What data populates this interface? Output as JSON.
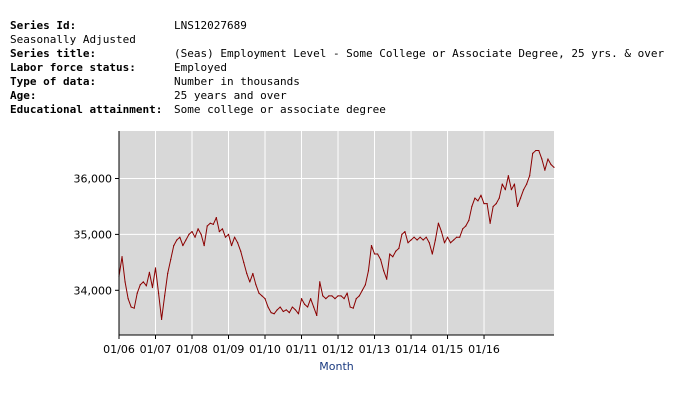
{
  "metadata": {
    "rows": [
      {
        "key": "Series Id:",
        "value": "LNS12027689",
        "bold": true
      },
      {
        "key": "Seasonally Adjusted",
        "value": "",
        "bold": false
      },
      {
        "key": "Series title:",
        "value": "(Seas) Employment Level - Some College or Associate Degree, 25 yrs. & over",
        "bold": true
      },
      {
        "key": "Labor force status:",
        "value": "Employed",
        "bold": true
      },
      {
        "key": "Type of data:",
        "value": "Number in thousands",
        "bold": true
      },
      {
        "key": "Age:",
        "value": "25 years and over",
        "bold": true
      },
      {
        "key": "Educational attainment:",
        "value": "Some college or associate degree",
        "bold": true
      }
    ]
  },
  "chart_data": {
    "type": "line",
    "title": "",
    "xlabel": "Month",
    "ylabel": "",
    "x_tick_labels": [
      "01/06",
      "01/07",
      "01/08",
      "01/09",
      "01/10",
      "01/11",
      "01/12",
      "01/13",
      "01/14",
      "01/15",
      "01/16"
    ],
    "y_tick_labels": [
      "34,000",
      "35,000",
      "36,000"
    ],
    "y_ticks": [
      34000,
      35000,
      36000
    ],
    "ylim": [
      33200,
      36850
    ],
    "x_start": "2006-01",
    "x_end": "2016-06",
    "grid": true,
    "colors": {
      "plot_background": "#d8d8d8",
      "grid": "#ffffff",
      "line": "#8b0000",
      "axis_title": "#1a3a80"
    },
    "series": [
      {
        "values": [
          34250,
          34600,
          34150,
          33850,
          33700,
          33680,
          33950,
          34100,
          34150,
          34080,
          34320,
          34050,
          34400,
          33950,
          33480,
          33900,
          34300,
          34550,
          34800,
          34900,
          34950,
          34800,
          34900,
          35000,
          35050,
          34950,
          35100,
          35000,
          34800,
          35150,
          35200,
          35180,
          35300,
          35050,
          35100,
          34950,
          35000,
          34800,
          34950,
          34850,
          34700,
          34500,
          34300,
          34150,
          34300,
          34100,
          33950,
          33900,
          33850,
          33700,
          33600,
          33580,
          33650,
          33700,
          33620,
          33650,
          33600,
          33700,
          33650,
          33580,
          33850,
          33750,
          33700,
          33850,
          33700,
          33550,
          34150,
          33900,
          33850,
          33900,
          33900,
          33850,
          33900,
          33900,
          33850,
          33950,
          33700,
          33680,
          33850,
          33900,
          34000,
          34100,
          34350,
          34800,
          34650,
          34650,
          34550,
          34350,
          34200,
          34650,
          34600,
          34700,
          34750,
          35000,
          35050,
          34850,
          34900,
          34950,
          34900,
          34950,
          34900,
          34950,
          34850,
          34650,
          34900,
          35200,
          35050,
          34850,
          34950,
          34850,
          34900,
          34950,
          34950,
          35100,
          35150,
          35250,
          35500,
          35650,
          35600,
          35700,
          35550,
          35550,
          35200,
          35500,
          35550,
          35650,
          35900,
          35800,
          36050,
          35800,
          35900,
          35500,
          35650,
          35800,
          35900,
          36050,
          36450,
          36500,
          36500,
          36350,
          36150,
          36350,
          36250,
          36200
        ]
      }
    ]
  }
}
